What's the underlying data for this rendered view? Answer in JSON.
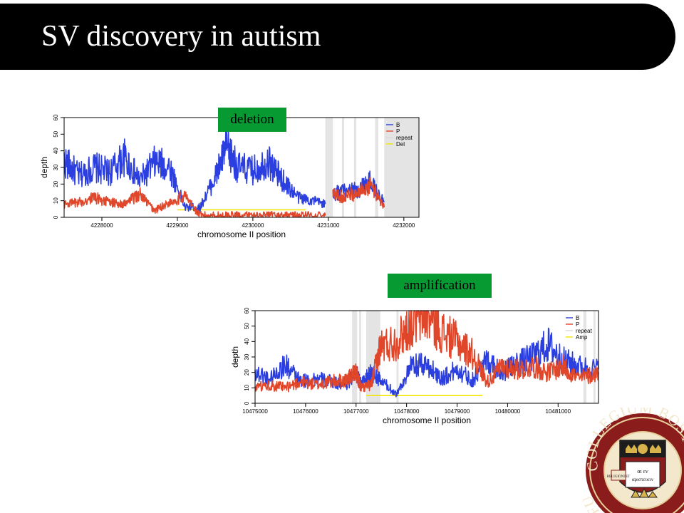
{
  "slide": {
    "title": "SV discovery in autism",
    "tag_deletion": "deletion",
    "tag_amplification": "amplification",
    "tag_color": "#079a33"
  },
  "seal": {
    "ring_text_top": "COLLEGIUM BOST",
    "ring_text_left": "FU",
    "banner_text": "RELIGIONI ET",
    "book_text_line1": "αι εν",
    "book_text_line2": "αριστευειν",
    "ring_color": "#8b1c1c"
  },
  "chart_data": [
    {
      "type": "line",
      "title": "",
      "xlabel": "chromosome II position",
      "ylabel": "depth",
      "xlim": [
        4227500,
        4232200
      ],
      "ylim": [
        0,
        60
      ],
      "x_ticks": [
        4228000,
        4229000,
        4230000,
        4231000,
        4232000
      ],
      "y_ticks": [
        0,
        10,
        20,
        30,
        40,
        50,
        60
      ],
      "legend_position": "top-right",
      "legend": [
        {
          "label": "B",
          "color": "#2b3ee0"
        },
        {
          "label": "P",
          "color": "#e0462a"
        },
        {
          "label": "repeat",
          "color": "#d9d9d9"
        },
        {
          "label": "Del",
          "color": "#f2e600"
        }
      ],
      "repeat_regions": [
        [
          4230960,
          4231060
        ],
        [
          4231180,
          4231210
        ],
        [
          4231340,
          4231370
        ],
        [
          4231620,
          4231660
        ],
        [
          4231740,
          4232200
        ]
      ],
      "call_segment": {
        "name": "Del",
        "x": [
          4229000,
          4230700
        ],
        "y": 4.5
      },
      "series": [
        {
          "name": "B",
          "color": "#2b3ee0",
          "x": [
            4227500,
            4227700,
            4227900,
            4228100,
            4228300,
            4228500,
            4228700,
            4228900,
            4229100,
            4229300,
            4229500,
            4229650,
            4229800,
            4230000,
            4230200,
            4230400,
            4230600,
            4230800,
            4230960
          ],
          "y": [
            34,
            25,
            30,
            27,
            36,
            22,
            33,
            30,
            6,
            6,
            24,
            42,
            30,
            28,
            34,
            22,
            12,
            10,
            8
          ]
        },
        {
          "name": "B",
          "color": "#2b3ee0",
          "x": [
            4231060,
            4231200,
            4231400,
            4231550,
            4231740
          ],
          "y": [
            14,
            16,
            16,
            22,
            9
          ]
        },
        {
          "name": "P",
          "color": "#e0462a",
          "x": [
            4227500,
            4227700,
            4227900,
            4228100,
            4228300,
            4228500,
            4228700,
            4228900,
            4229100,
            4229300,
            4229500,
            4229700,
            4229900,
            4230100,
            4230300,
            4230500,
            4230700,
            4230960
          ],
          "y": [
            8,
            9,
            12,
            9,
            8,
            14,
            4,
            9,
            13,
            1,
            1,
            1,
            1,
            1,
            1,
            1,
            1,
            1
          ]
        },
        {
          "name": "P",
          "color": "#e0462a",
          "x": [
            4231060,
            4231200,
            4231400,
            4231550,
            4231740
          ],
          "y": [
            14,
            12,
            15,
            20,
            6
          ]
        }
      ]
    },
    {
      "type": "line",
      "title": "",
      "xlabel": "chromosome II position",
      "ylabel": "depth",
      "xlim": [
        10475000,
        10481800
      ],
      "ylim": [
        0,
        60
      ],
      "x_ticks": [
        10475000,
        10476000,
        10477000,
        10478000,
        10479000,
        10480000,
        10481000
      ],
      "y_ticks": [
        0,
        10,
        20,
        30,
        40,
        50,
        60
      ],
      "legend_position": "top-right",
      "legend": [
        {
          "label": "B",
          "color": "#2b3ee0"
        },
        {
          "label": "P",
          "color": "#e0462a"
        },
        {
          "label": "repeat",
          "color": "#d9d9d9"
        },
        {
          "label": "Amp",
          "color": "#f2e600"
        }
      ],
      "repeat_regions": [
        [
          10476920,
          10477020
        ],
        [
          10477060,
          10477100
        ],
        [
          10477200,
          10477480
        ],
        [
          10477800,
          10477840
        ],
        [
          10481500,
          10481560
        ],
        [
          10481700,
          10481740
        ]
      ],
      "call_segment": {
        "name": "Amp",
        "x": [
          10477200,
          10479500
        ],
        "y": 5
      },
      "series": [
        {
          "name": "B",
          "color": "#2b3ee0",
          "x": [
            10475000,
            10475300,
            10475600,
            10475900,
            10476200,
            10476500,
            10476800,
            10477000,
            10477100,
            10477300,
            10477480,
            10477800,
            10478100,
            10478400,
            10478700,
            10479000,
            10479300,
            10479600,
            10479900,
            10480200,
            10480500,
            10480800,
            10481100,
            10481400,
            10481800
          ],
          "y": [
            20,
            16,
            25,
            14,
            16,
            14,
            12,
            20,
            12,
            20,
            15,
            6,
            24,
            25,
            16,
            22,
            15,
            28,
            20,
            26,
            30,
            38,
            28,
            24,
            22
          ]
        },
        {
          "name": "P",
          "color": "#e0462a",
          "x": [
            10475000,
            10475300,
            10475600,
            10475900,
            10476200,
            10476500,
            10476800,
            10477000,
            10477100,
            10477300,
            10477480,
            10477800,
            10478100,
            10478400,
            10478700,
            10479000,
            10479300,
            10479600,
            10479900,
            10480200,
            10480500,
            10480800,
            10481100,
            10481400,
            10481800
          ],
          "y": [
            10,
            12,
            10,
            14,
            12,
            14,
            15,
            20,
            10,
            12,
            37,
            40,
            52,
            58,
            46,
            40,
            32,
            14,
            24,
            22,
            24,
            20,
            24,
            16,
            20
          ]
        }
      ]
    }
  ]
}
